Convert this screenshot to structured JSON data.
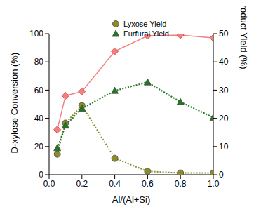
{
  "chart_data": {
    "type": "line",
    "x_label": "Al/(Al+Si)",
    "y_label": "D-xylose Conversion (%)",
    "y2_label": "Product Yield (%)",
    "x": [
      0.05,
      0.1,
      0.2,
      0.4,
      0.6,
      0.8,
      1.0
    ],
    "xlim": [
      0,
      1.0
    ],
    "xticks": [
      {
        "value": 0,
        "label": "0.0"
      },
      {
        "value": 0.2,
        "label": "0.2"
      },
      {
        "value": 0.4,
        "label": "0.4"
      },
      {
        "value": 0.6,
        "label": "0.6"
      },
      {
        "value": 0.8,
        "label": "0.8"
      },
      {
        "value": 1.0,
        "label": "1.0"
      }
    ],
    "ylim": [
      0,
      100
    ],
    "yticks": [
      0,
      20,
      40,
      60,
      80,
      100
    ],
    "y2lim": [
      0,
      50
    ],
    "y2ticks": [
      0,
      10,
      20,
      30,
      40,
      50
    ],
    "grid": false,
    "legend": "top",
    "series": [
      {
        "color": "#f28080",
        "marker": "diamond",
        "line_style": "solid",
        "values": [
          32,
          56,
          59,
          87.5,
          98.5,
          99,
          97
        ]
      },
      {
        "name": "Lyxose Yield",
        "axis": "y2",
        "color": "#8c8c2a",
        "marker": "circle",
        "line_style": "dotted",
        "values": [
          7.3,
          18.3,
          24.5,
          5.8,
          1.2,
          0.6,
          0.6
        ]
      },
      {
        "name": "Furfural Yield",
        "axis": "y2",
        "color": "#1f7a1f",
        "marker": "triangle",
        "line_style": "dotted",
        "values": [
          9.5,
          17.5,
          23.5,
          29.8,
          32.8,
          25.8,
          20.3
        ]
      }
    ]
  }
}
